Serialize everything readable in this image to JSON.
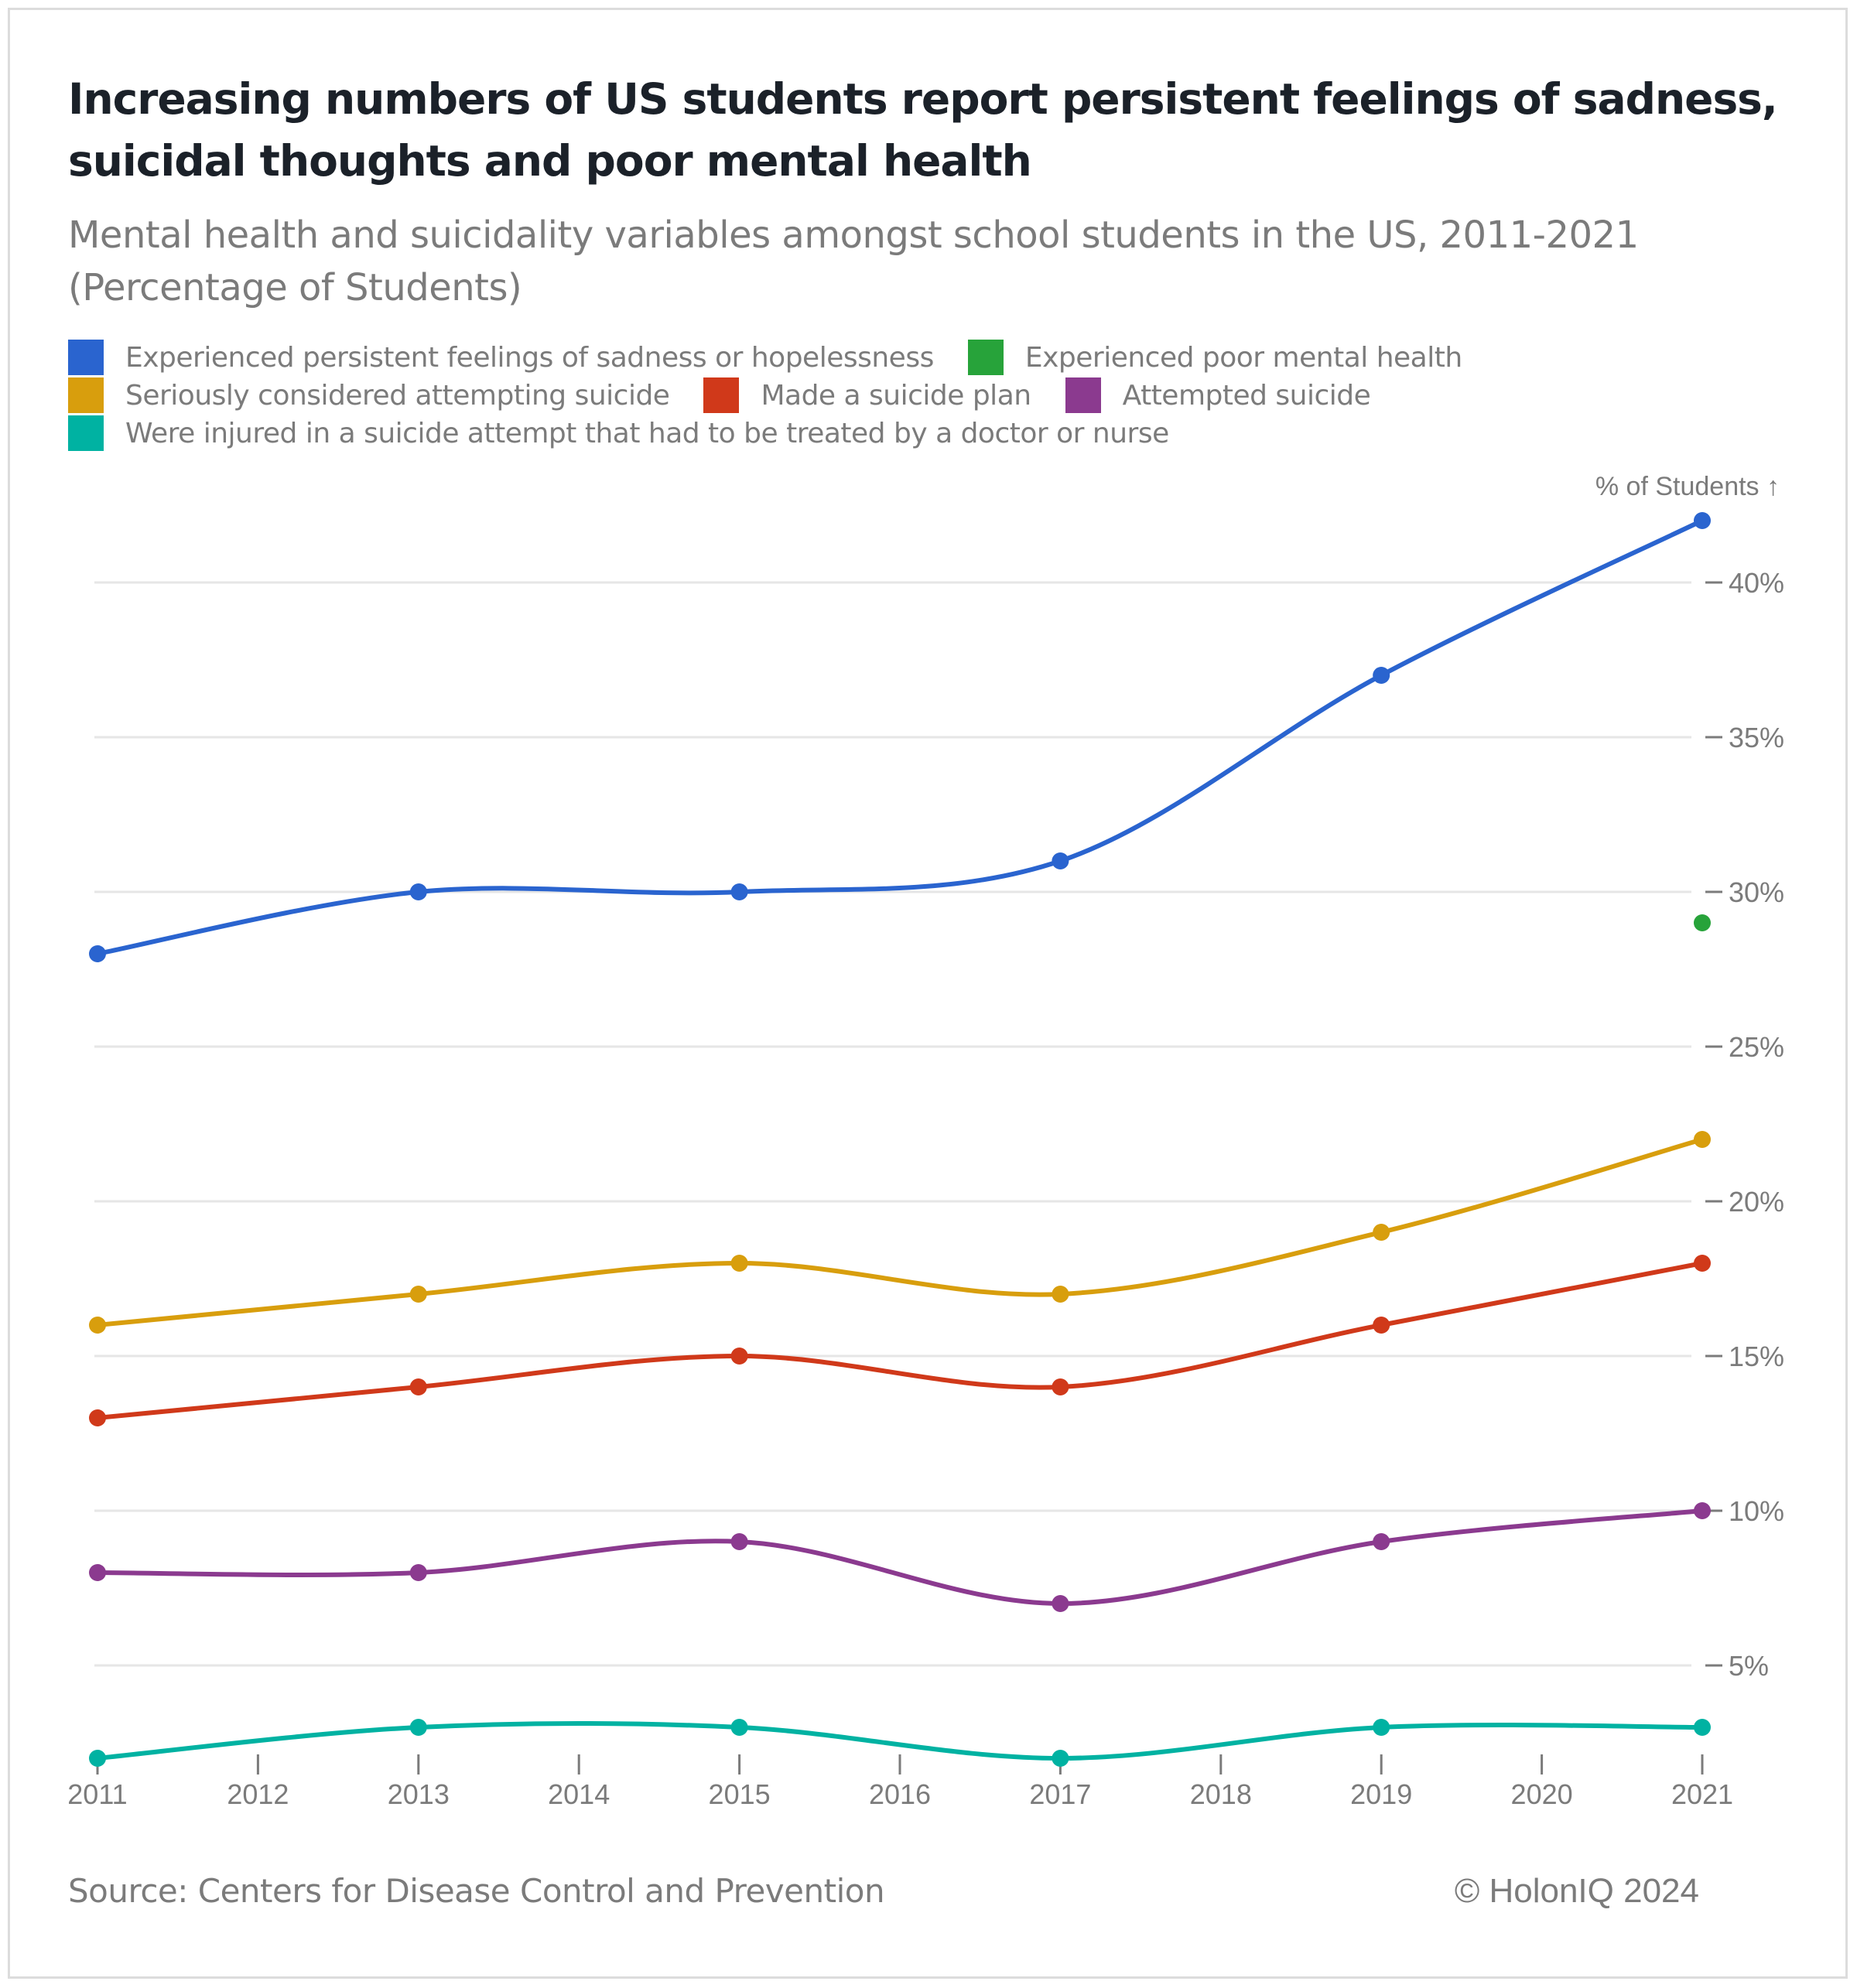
{
  "header": {
    "title": "Increasing numbers of US students report persistent feelings of sadness, suicidal thoughts and poor mental health",
    "subtitle": "Mental health and suicidality variables amongst school students in the US, 2011-2021 (Percentage of Students)"
  },
  "legend": {
    "rows": [
      [
        {
          "label": "Experienced persistent feelings of sadness or hopelessness",
          "color": "#2a64cf"
        },
        {
          "label": "Experienced poor mental health",
          "color": "#27a33a"
        }
      ],
      [
        {
          "label": "Seriously considered attempting suicide",
          "color": "#d89e0d"
        },
        {
          "label": "Made a suicide plan",
          "color": "#d0391a"
        },
        {
          "label": "Attempted suicide",
          "color": "#8b3a8f"
        }
      ],
      [
        {
          "label": "Were injured in a suicide attempt that had to be treated by a doctor or nurse",
          "color": "#00b2a2"
        }
      ]
    ]
  },
  "footer": {
    "source": "Source: Centers for Disease Control and Prevention",
    "copyright": "© HolonIQ 2024"
  },
  "chart_data": {
    "type": "line",
    "title": "Increasing numbers of US students report persistent feelings of sadness, suicidal thoughts and poor mental health",
    "subtitle": "Mental health and suicidality variables amongst school students in the US, 2011-2021 (Percentage of Students)",
    "xlabel": "",
    "ylabel": "% of Students ↑",
    "x_ticks": [
      "2011",
      "2012",
      "2013",
      "2014",
      "2015",
      "2016",
      "2017",
      "2018",
      "2019",
      "2020",
      "2021"
    ],
    "x_range": [
      2011,
      2021
    ],
    "y_ticks": [
      5,
      10,
      15,
      20,
      25,
      30,
      35,
      40
    ],
    "y_tick_labels": [
      "5%",
      "10%",
      "15%",
      "20%",
      "25%",
      "30%",
      "35%",
      "40%"
    ],
    "ylim": [
      2,
      42
    ],
    "y_axis_side": "right",
    "grid": true,
    "curve": "smooth",
    "legend_position": "top-left",
    "series": [
      {
        "name": "Experienced persistent feelings of sadness or hopelessness",
        "color": "#2a64cf",
        "x": [
          2011,
          2013,
          2015,
          2017,
          2019,
          2021
        ],
        "values": [
          28,
          30,
          30,
          31,
          37,
          42
        ]
      },
      {
        "name": "Experienced poor mental health",
        "color": "#27a33a",
        "x": [
          2021
        ],
        "values": [
          29
        ]
      },
      {
        "name": "Seriously considered attempting suicide",
        "color": "#d89e0d",
        "x": [
          2011,
          2013,
          2015,
          2017,
          2019,
          2021
        ],
        "values": [
          16,
          17,
          18,
          17,
          19,
          22
        ]
      },
      {
        "name": "Made a suicide plan",
        "color": "#d0391a",
        "x": [
          2011,
          2013,
          2015,
          2017,
          2019,
          2021
        ],
        "values": [
          13,
          14,
          15,
          14,
          16,
          18
        ]
      },
      {
        "name": "Attempted suicide",
        "color": "#8b3a8f",
        "x": [
          2011,
          2013,
          2015,
          2017,
          2019,
          2021
        ],
        "values": [
          8,
          8,
          9,
          7,
          9,
          10
        ]
      },
      {
        "name": "Were injured in a suicide attempt that had to be treated by a doctor or nurse",
        "color": "#00b2a2",
        "x": [
          2011,
          2013,
          2015,
          2017,
          2019,
          2021
        ],
        "values": [
          2,
          3,
          3,
          2,
          3,
          3
        ]
      }
    ]
  }
}
